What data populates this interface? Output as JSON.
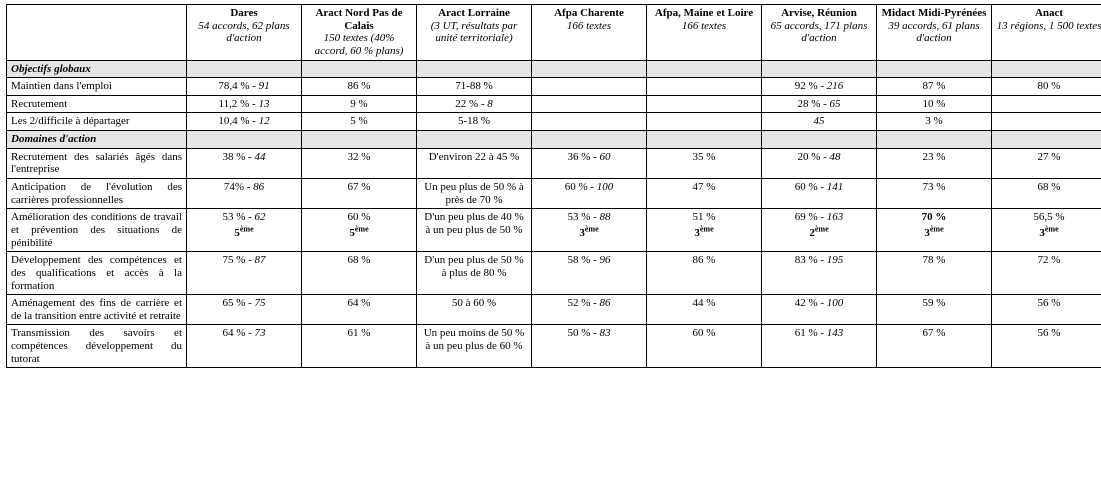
{
  "columns": [
    {
      "id": "dares",
      "org": "Dares",
      "sub": "54 accords, 62 plans d'action"
    },
    {
      "id": "npdc",
      "org": "Aract Nord Pas de Calais",
      "sub": "150 textes (40% accord, 60 % plans)"
    },
    {
      "id": "lorraine",
      "org": "Aract Lorraine",
      "sub": "(3 UT, résultats par unité territoriale)"
    },
    {
      "id": "charente",
      "org": "Afpa Charente",
      "sub": "166 textes"
    },
    {
      "id": "maine",
      "org": "Afpa, Maine et Loire",
      "sub": "166 textes"
    },
    {
      "id": "reunion",
      "org": "Arvise, Réunion",
      "sub": "65 accords, 171 plans d'action"
    },
    {
      "id": "midi",
      "org": "Midact Midi-Pyrénées",
      "sub": "39 accords, 61 plans d'action"
    },
    {
      "id": "anact",
      "org": "Anact",
      "sub": "13 régions, 1 500 textes"
    }
  ],
  "sections": [
    {
      "title": "Objectifs globaux",
      "rows": [
        {
          "label": "Maintien dans l'emploi",
          "cells": [
            {
              "pct": "78,4 %",
              "count": "91"
            },
            {
              "pct": "86 %"
            },
            {
              "pct": "71-88 %"
            },
            {},
            {},
            {
              "pct": "92 %",
              "count": "216"
            },
            {
              "pct": "87 %"
            },
            {
              "pct": "80 %"
            }
          ]
        },
        {
          "label": "Recrutement",
          "cells": [
            {
              "pct": "11,2 %",
              "count": "13"
            },
            {
              "pct": "9 %"
            },
            {
              "pct": "22 %",
              "count": "8"
            },
            {},
            {},
            {
              "pct": "28 %",
              "count": "65"
            },
            {
              "pct": "10 %"
            },
            {}
          ]
        },
        {
          "label": "Les 2/difficile à départager",
          "cells": [
            {
              "pct": "10,4 %",
              "count": "12"
            },
            {
              "pct": "5 %"
            },
            {
              "pct": "5-18 %"
            },
            {},
            {},
            {
              "count": "45"
            },
            {
              "pct": "3 %"
            },
            {}
          ]
        }
      ]
    },
    {
      "title": "Domaines d'action",
      "rows": [
        {
          "label": "Recrutement des salariés âgés dans l'entreprise",
          "cells": [
            {
              "pct": "38 %",
              "count": "44"
            },
            {
              "pct": "32 %"
            },
            {
              "pct": "D'environ 22 à 45 %"
            },
            {
              "pct": "36 %",
              "count": "60"
            },
            {
              "pct": "35 %"
            },
            {
              "pct": "20 %",
              "count": "48"
            },
            {
              "pct": "23 %"
            },
            {
              "pct": "27 %"
            }
          ]
        },
        {
          "label": "Anticipation de l'évolution des carrières professionnelles",
          "cells": [
            {
              "pct": "74%",
              "count": "86"
            },
            {
              "pct": "67 %"
            },
            {
              "pct": "Un peu plus de 50 % à près de 70 %"
            },
            {
              "pct": "60 %",
              "count": "100"
            },
            {
              "pct": "47 %"
            },
            {
              "pct": "60 %",
              "count": "141"
            },
            {
              "pct": "73 %"
            },
            {
              "pct": "68 %"
            }
          ]
        },
        {
          "label": "Amélioration des conditions de travail et prévention des situations de pénibilité",
          "cells": [
            {
              "pct": "53 %",
              "count": "62",
              "rank": "5",
              "rank_suffix": "ème"
            },
            {
              "pct": "60 %",
              "rank": "5",
              "rank_suffix": "ème"
            },
            {
              "pct": "D'un peu plus de 40 % à un peu plus de 50 %"
            },
            {
              "pct": "53 %",
              "count": "88",
              "rank": "3",
              "rank_suffix": "ème"
            },
            {
              "pct": "51 %",
              "rank": "3",
              "rank_suffix": "ème"
            },
            {
              "pct": "69 %",
              "count": "163",
              "rank": "2",
              "rank_suffix": "ème"
            },
            {
              "pct": "70 %",
              "pct_bold": true,
              "rank": "3",
              "rank_suffix": "ème"
            },
            {
              "pct": "56,5 %",
              "rank": "3",
              "rank_suffix": "ème"
            }
          ]
        },
        {
          "label": "Développement des compétences et des qualifications et accès à la formation",
          "cells": [
            {
              "pct": "75 %",
              "count": "87"
            },
            {
              "pct": "68 %"
            },
            {
              "pct": "D'un peu plus de 50 % à plus de 80 %"
            },
            {
              "pct": "58 %",
              "count": "96"
            },
            {
              "pct": "86 %"
            },
            {
              "pct": "83 %",
              "count": "195"
            },
            {
              "pct": "78 %"
            },
            {
              "pct": "72 %"
            }
          ]
        },
        {
          "label": "Aménagement des fins de carrière et de la transition entre activité et retraite",
          "cells": [
            {
              "pct": "65 %",
              "count": "75"
            },
            {
              "pct": "64 %"
            },
            {
              "pct": "50 à 60 %"
            },
            {
              "pct": "52 %",
              "count": "86"
            },
            {
              "pct": "44 %"
            },
            {
              "pct": "42 %",
              "count": "100"
            },
            {
              "pct": "59 %"
            },
            {
              "pct": "56 %"
            }
          ]
        },
        {
          "label": "Transmission des savoirs et compétences développement du tutorat",
          "cells": [
            {
              "pct": "64 %",
              "count": "73"
            },
            {
              "pct": "61 %"
            },
            {
              "pct": "Un peu moins de 50 % à un peu plus de 60 %"
            },
            {
              "pct": "50 %",
              "count": "83"
            },
            {
              "pct": "60 %"
            },
            {
              "pct": "61 %",
              "count": "143"
            },
            {
              "pct": "67 %"
            },
            {
              "pct": "56 %"
            }
          ]
        }
      ]
    }
  ]
}
